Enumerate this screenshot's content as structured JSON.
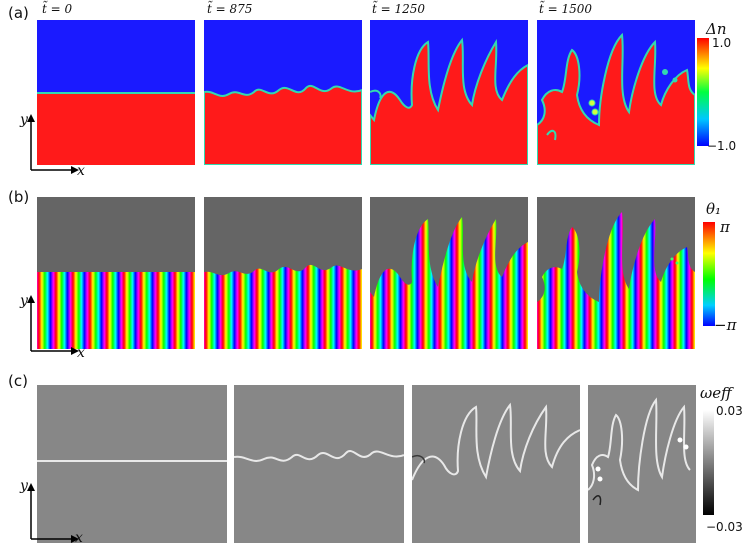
{
  "row_a": {
    "label": "(a)",
    "times": [
      "t̃ = 0",
      "t̃ = 875",
      "t̃ = 1250",
      "t̃ = 1500"
    ],
    "colorbar": {
      "title": "Δn",
      "max": "1.0",
      "min": "−1.0"
    },
    "colors": {
      "blue": "#1a1aff",
      "red": "#ff1a1a",
      "interface": "#33d9b0"
    }
  },
  "row_b": {
    "label": "(b)",
    "colorbar": {
      "title": "θ₁",
      "max": "π",
      "min": "−π"
    },
    "colors": {
      "gray": "#656565"
    }
  },
  "row_c": {
    "label": "(c)",
    "colorbar": {
      "title": "ωeff",
      "max": "0.03",
      "min": "−0.03"
    },
    "colors": {
      "gray": "#878787",
      "line": "#e8e8e8"
    }
  },
  "axes": {
    "x": "x",
    "y": "y"
  }
}
